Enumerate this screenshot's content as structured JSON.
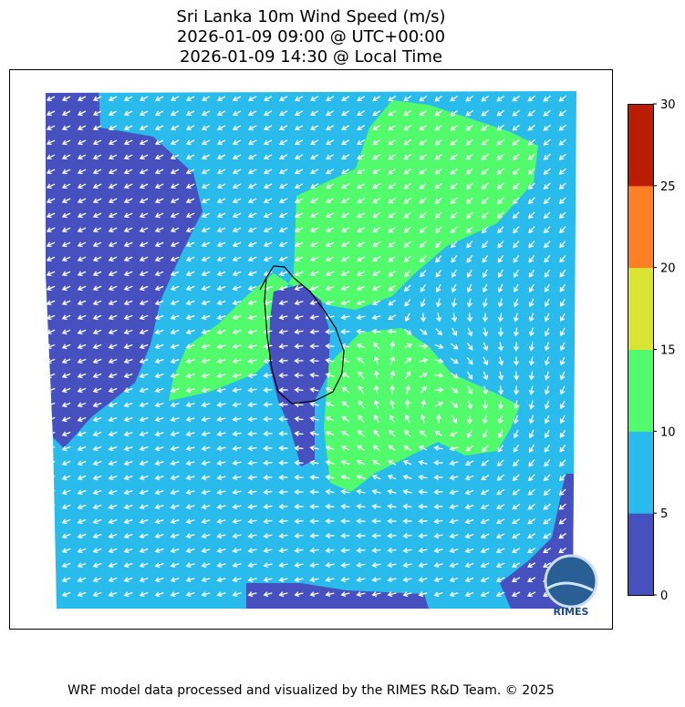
{
  "title_lines": [
    "Sri Lanka 10m Wind Speed (m/s)",
    "2026-01-09 09:00 @ UTC+00:00",
    "2026-01-09 14:30 @ Local Time"
  ],
  "footer": "WRF model data processed and visualized by the RIMES R&D Team. © 2025",
  "logo": {
    "text": "RIMES",
    "ring_text": "Hazard Early Warning System"
  },
  "chart_data": {
    "type": "heatmap",
    "title": "Sri Lanka 10m Wind Speed (m/s)",
    "subtitle": [
      "2026-01-09 09:00 @ UTC+00:00",
      "2026-01-09 14:30 @ Local Time"
    ],
    "variable": "10m wind speed with wind direction arrows",
    "colorbar": {
      "levels": [
        0,
        5,
        10,
        15,
        20,
        25,
        30
      ],
      "tick_labels": [
        "0",
        "5",
        "10",
        "15",
        "20",
        "25",
        "30"
      ],
      "colors": [
        "#4650be",
        "#29bbec",
        "#52fb6b",
        "#d9e532",
        "#fe8024",
        "#bb1d04"
      ]
    },
    "regions": [
      {
        "range": "0-5",
        "location": "west and Sri Lanka interior, small patches south-east"
      },
      {
        "range": "5-10",
        "location": "most of domain"
      },
      {
        "range": "10-15",
        "location": "north-east and around the cyclonic circulation east of Sri Lanka"
      }
    ],
    "vectors": "white wind arrows; cyclonic circulation south-east of Sri Lanka"
  }
}
